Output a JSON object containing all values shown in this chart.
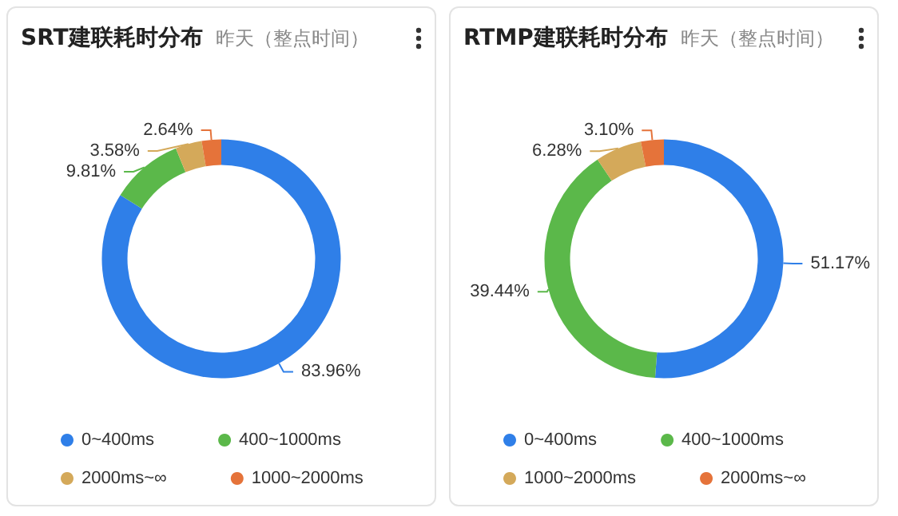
{
  "chart_data": [
    {
      "type": "donut",
      "title": "SRT建联耗时分布",
      "subtitle": "昨天（整点时间）",
      "categories": [
        "0~400ms",
        "400~1000ms",
        "2000ms~∞",
        "1000~2000ms"
      ],
      "values": [
        83.96,
        9.81,
        3.58,
        2.64
      ],
      "colors": [
        "#2f7fe8",
        "#5bb84a",
        "#d4a95a",
        "#e5733a"
      ],
      "value_labels": [
        "83.96%",
        "9.81%",
        "3.58%",
        "2.64%"
      ],
      "legend": "bottom"
    },
    {
      "type": "donut",
      "title": "RTMP建联耗时分布",
      "subtitle": "昨天（整点时间）",
      "categories": [
        "0~400ms",
        "400~1000ms",
        "1000~2000ms",
        "2000ms~∞"
      ],
      "values": [
        51.17,
        39.44,
        6.28,
        3.1
      ],
      "colors": [
        "#2f7fe8",
        "#5bb84a",
        "#d4a95a",
        "#e5733a"
      ],
      "value_labels": [
        "51.17%",
        "39.44%",
        "6.28%",
        "3.10%"
      ],
      "legend": "bottom"
    }
  ]
}
